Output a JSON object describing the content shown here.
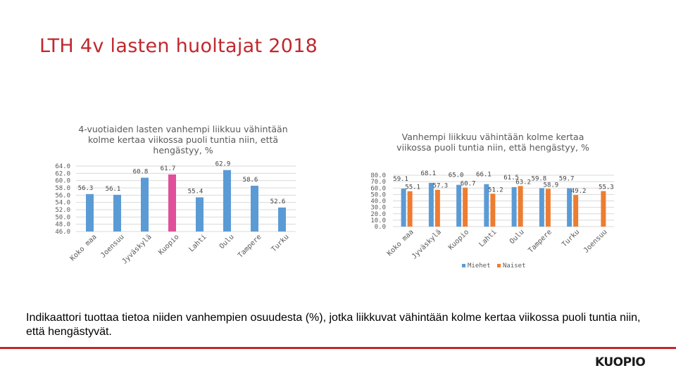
{
  "page": {
    "title": "LTH 4v lasten huoltajat 2018"
  },
  "colors": {
    "accent": "#c0282e",
    "bar": "#5b9bd5",
    "highlight": "#e0509a",
    "female": "#ed7d31",
    "grid": "#d9d9d9"
  },
  "chart_data": [
    {
      "type": "bar",
      "title": "4-vuotiaiden lasten vanhempi liikkuu vähintään kolme kertaa viikossa puoli tuntia niin, että hengästyy, %",
      "categories": [
        "Koko maa",
        "Joensuu",
        "Jyväskylä",
        "Kuopio",
        "Lahti",
        "Oulu",
        "Tampere",
        "Turku"
      ],
      "values": [
        56.3,
        56.1,
        60.8,
        61.7,
        55.4,
        62.9,
        58.6,
        52.6
      ],
      "value_labels": [
        "56.3",
        "56.1",
        "60.8",
        "61.7",
        "55.4",
        "62.9",
        "58.6",
        "52.6"
      ],
      "highlight": "Kuopio",
      "ylim": [
        46.0,
        64.0
      ],
      "yticks": [
        "46.0",
        "48.0",
        "50.0",
        "52.0",
        "54.0",
        "56.0",
        "58.0",
        "60.0",
        "62.0",
        "64.0"
      ],
      "grid": true
    },
    {
      "type": "bar",
      "title": "Vanhempi liikkuu vähintään kolme kertaa viikossa puoli tuntia niin, että hengästyy, %",
      "categories": [
        "Koko maa",
        "Jyväskylä",
        "Kuopio",
        "Lahti",
        "Oulu",
        "Tampere",
        "Turku",
        "Joensuu"
      ],
      "series": [
        {
          "name": "Miehet",
          "values": [
            59.1,
            68.1,
            65.0,
            66.1,
            61.5,
            59.8,
            59.7,
            null
          ],
          "value_labels": [
            "59.1",
            "68.1",
            "65.0",
            "66.1",
            "61.5",
            "59.8",
            "59.7",
            ""
          ]
        },
        {
          "name": "Naiset",
          "values": [
            55.1,
            57.3,
            60.7,
            51.2,
            63.2,
            58.9,
            49.2,
            55.3
          ],
          "value_labels": [
            "55.1",
            "57.3",
            "60.7",
            "51.2",
            "63.2",
            "58.9",
            "49.2",
            "55.3"
          ]
        }
      ],
      "ylim": [
        0.0,
        80.0
      ],
      "yticks": [
        "0.0",
        "10.0",
        "20.0",
        "30.0",
        "40.0",
        "50.0",
        "60.0",
        "70.0",
        "80.0"
      ],
      "legend": "bottom",
      "grid": true
    }
  ],
  "footnote": "Indikaattori tuottaa tietoa niiden vanhempien osuudesta (%), jotka liikkuvat vähintään kolme kertaa viikossa puoli tuntia niin, että hengästyvät.",
  "logo": {
    "text": "KUOPIO"
  }
}
